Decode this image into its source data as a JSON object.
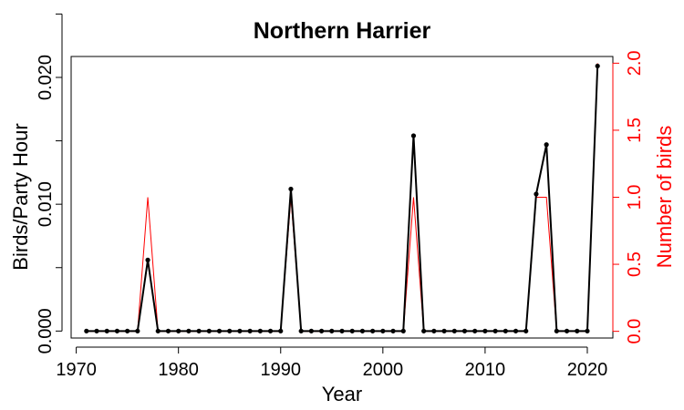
{
  "chart_data": {
    "type": "line",
    "title": "Northern Harrier",
    "xlabel": "Year",
    "ylabel_left": "Birds/Party Hour",
    "ylabel_right": "Number of birds",
    "xlim": [
      1969.5,
      2022.5
    ],
    "ylim_left": [
      -0.00055,
      0.02165
    ],
    "ylim_right": [
      -0.05,
      2.05
    ],
    "x_ticks": [
      "1970",
      "1980",
      "1990",
      "2000",
      "2010",
      "2020"
    ],
    "y_left_ticks": [
      "0.000",
      "0.010",
      "0.020"
    ],
    "y_right_ticks": [
      "0.0",
      "0.5",
      "1.0",
      "1.5",
      "2.0"
    ],
    "colors": {
      "birds_per_party_hour": "#000000",
      "number_of_birds": "#ff0000"
    },
    "x": [
      1971,
      1972,
      1973,
      1974,
      1975,
      1976,
      1977,
      1978,
      1979,
      1980,
      1981,
      1982,
      1983,
      1984,
      1985,
      1986,
      1987,
      1988,
      1989,
      1990,
      1991,
      1992,
      1993,
      1994,
      1995,
      1996,
      1997,
      1998,
      1999,
      2000,
      2001,
      2002,
      2003,
      2004,
      2005,
      2006,
      2007,
      2008,
      2009,
      2010,
      2011,
      2012,
      2013,
      2014,
      2015,
      2016,
      2017,
      2018,
      2019,
      2020,
      2021
    ],
    "series": [
      {
        "axis": "left",
        "style": "line-with-points",
        "values": [
          0,
          0,
          0,
          0,
          0,
          0,
          0.0056,
          0,
          0,
          0,
          0,
          0,
          0,
          0,
          0,
          0,
          0,
          0,
          0,
          0,
          0.0112,
          0,
          0,
          0,
          0,
          0,
          0,
          0,
          0,
          0,
          0,
          0,
          0.0154,
          0,
          0,
          0,
          0,
          0,
          0,
          0,
          0,
          0,
          0,
          0,
          0.0108,
          0.0147,
          0,
          0,
          0,
          0,
          0.0209
        ]
      },
      {
        "axis": "right",
        "style": "step",
        "values": [
          0,
          0,
          0,
          0,
          0,
          0,
          1,
          0,
          0,
          0,
          0,
          0,
          0,
          0,
          0,
          0,
          0,
          0,
          0,
          0,
          1,
          0,
          0,
          0,
          0,
          0,
          0,
          0,
          0,
          0,
          0,
          0,
          1,
          0,
          0,
          0,
          0,
          0,
          0,
          0,
          0,
          0,
          0,
          0,
          1,
          1,
          0,
          0,
          0,
          0,
          2
        ]
      }
    ]
  }
}
